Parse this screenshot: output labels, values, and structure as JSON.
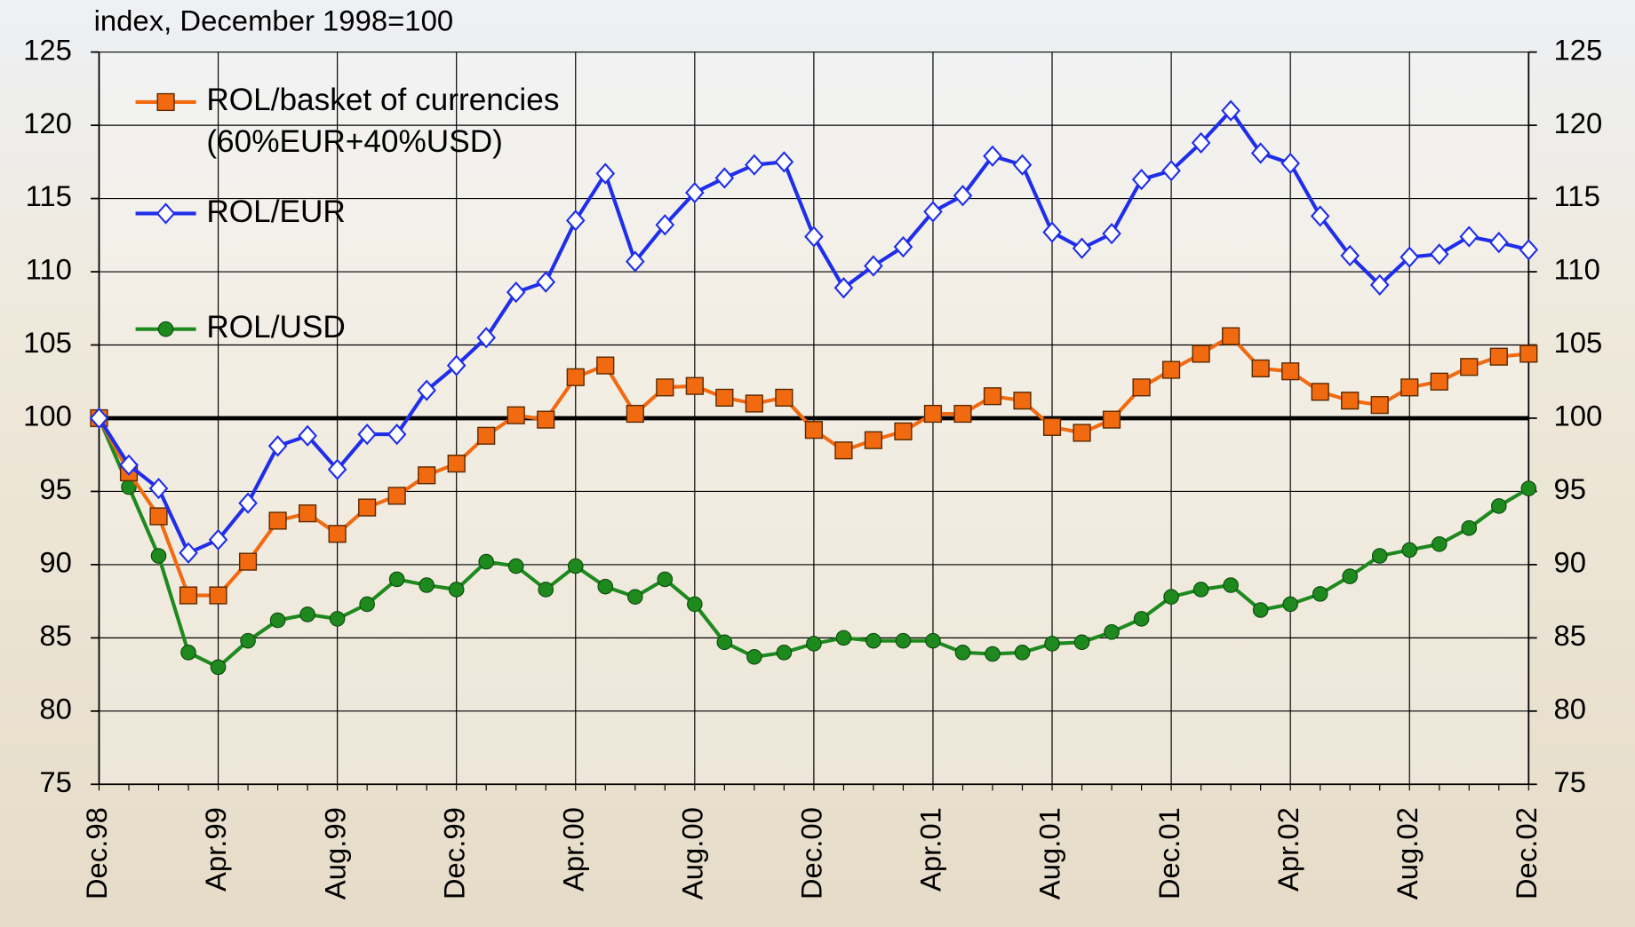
{
  "chart_data": {
    "type": "line",
    "subtitle": "index, December 1998=100",
    "categories": [
      "Dec.98",
      null,
      null,
      null,
      "Apr.99",
      null,
      null,
      null,
      "Aug.99",
      null,
      null,
      null,
      "Dec.99",
      null,
      null,
      null,
      "Apr.00",
      null,
      null,
      null,
      "Aug.00",
      null,
      null,
      null,
      "Dec.00",
      null,
      null,
      null,
      "Apr.01",
      null,
      null,
      null,
      "Aug.01",
      null,
      null,
      null,
      "Dec.01",
      null,
      null,
      null,
      "Apr.02",
      null,
      null,
      null,
      "Aug.02",
      null,
      null,
      null,
      "Dec.02"
    ],
    "ylim": [
      75,
      125
    ],
    "yticks": [
      75,
      80,
      85,
      90,
      95,
      100,
      105,
      110,
      115,
      120,
      125
    ],
    "reference_line": 100,
    "grid": true,
    "legend": "upper left",
    "series": [
      {
        "name": "ROL/basket of currencies (60%EUR+40%USD)",
        "color": "#f26a10",
        "marker": "square",
        "values": [
          100,
          96.3,
          93.3,
          87.9,
          87.9,
          90.2,
          93.0,
          93.5,
          92.1,
          93.9,
          94.7,
          96.1,
          96.9,
          98.8,
          100.2,
          99.9,
          102.8,
          103.6,
          100.3,
          102.1,
          102.2,
          101.4,
          101.0,
          101.4,
          99.2,
          97.8,
          98.5,
          99.1,
          100.3,
          100.3,
          101.5,
          101.2,
          99.4,
          99.0,
          99.9,
          102.1,
          103.3,
          104.4,
          105.6,
          103.4,
          103.2,
          101.8,
          101.2,
          100.9,
          102.1,
          102.5,
          103.5,
          104.2,
          104.4
        ]
      },
      {
        "name": "ROL/EUR",
        "color": "#1f2eea",
        "marker": "diamond",
        "values": [
          100,
          96.8,
          95.2,
          90.8,
          91.7,
          94.2,
          98.1,
          98.8,
          96.5,
          98.9,
          98.9,
          101.9,
          103.6,
          105.5,
          108.6,
          109.3,
          113.5,
          116.7,
          110.7,
          113.2,
          115.4,
          116.4,
          117.3,
          117.5,
          112.4,
          108.9,
          110.4,
          111.7,
          114.1,
          115.2,
          117.9,
          117.3,
          112.7,
          111.6,
          112.6,
          116.3,
          116.9,
          118.8,
          121.0,
          118.1,
          117.4,
          113.8,
          111.1,
          109.1,
          111.0,
          111.2,
          112.4,
          112.0,
          111.5
        ]
      },
      {
        "name": "ROL/USD",
        "color": "#1e8a1e",
        "marker": "circle",
        "values": [
          100,
          95.3,
          90.6,
          84.0,
          83.0,
          84.8,
          86.2,
          86.6,
          86.3,
          87.3,
          89.0,
          88.6,
          88.3,
          90.2,
          89.9,
          88.3,
          89.9,
          88.5,
          87.8,
          89.0,
          87.3,
          84.7,
          83.7,
          84.0,
          84.6,
          85.0,
          84.8,
          84.8,
          84.8,
          84.0,
          83.9,
          84.0,
          84.6,
          84.7,
          85.4,
          86.3,
          87.8,
          88.3,
          88.6,
          86.9,
          87.3,
          88.0,
          89.2,
          90.6,
          91.0,
          91.4,
          92.5,
          94.0,
          95.2
        ]
      }
    ]
  }
}
